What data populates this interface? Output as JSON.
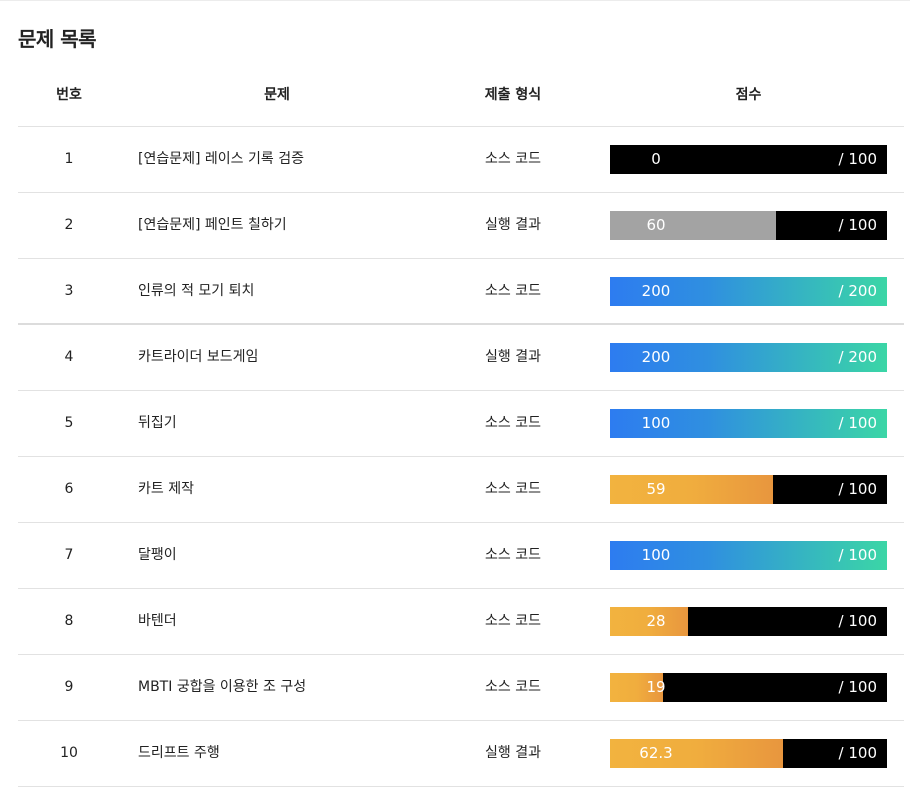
{
  "page_title": "문제 목록",
  "table": {
    "headers": {
      "number": "번호",
      "title": "문제",
      "submission_type": "제출 형식",
      "score": "점수"
    },
    "rows": [
      {
        "number": "1",
        "title": "[연습문제] 레이스 기록 검증",
        "submission_type": "소스 코드",
        "score": "0",
        "max": "100",
        "fraction": 0,
        "style": "none"
      },
      {
        "number": "2",
        "title": "[연습문제] 페인트 칠하기",
        "submission_type": "실행 결과",
        "score": "60",
        "max": "100",
        "fraction": 0.6,
        "style": "gray"
      },
      {
        "number": "3",
        "title": "인류의 적 모기 퇴치",
        "submission_type": "소스 코드",
        "score": "200",
        "max": "200",
        "fraction": 1,
        "style": "blue"
      },
      {
        "number": "4",
        "title": "카트라이더 보드게임",
        "submission_type": "실행 결과",
        "score": "200",
        "max": "200",
        "fraction": 1,
        "style": "blue"
      },
      {
        "number": "5",
        "title": "뒤집기",
        "submission_type": "소스 코드",
        "score": "100",
        "max": "100",
        "fraction": 1,
        "style": "blue"
      },
      {
        "number": "6",
        "title": "카트 제작",
        "submission_type": "소스 코드",
        "score": "59",
        "max": "100",
        "fraction": 0.59,
        "style": "orange"
      },
      {
        "number": "7",
        "title": "달팽이",
        "submission_type": "소스 코드",
        "score": "100",
        "max": "100",
        "fraction": 1,
        "style": "blue"
      },
      {
        "number": "8",
        "title": "바텐더",
        "submission_type": "소스 코드",
        "score": "28",
        "max": "100",
        "fraction": 0.28,
        "style": "orange"
      },
      {
        "number": "9",
        "title": "MBTI 궁합을 이용한 조 구성",
        "submission_type": "소스 코드",
        "score": "19",
        "max": "100",
        "fraction": 0.19,
        "style": "orange"
      },
      {
        "number": "10",
        "title": "드리프트 주행",
        "submission_type": "실행 결과",
        "score": "62.3",
        "max": "100",
        "fraction": 0.623,
        "style": "orange"
      }
    ]
  },
  "colors": {
    "bar_background": "#000000",
    "full_score_gradient": [
      "#2d7cf0",
      "#3bd6a6"
    ],
    "partial_score_gradient": [
      "#f2b33f",
      "#e8963e"
    ],
    "gray_fill": "#a3a3a3"
  }
}
